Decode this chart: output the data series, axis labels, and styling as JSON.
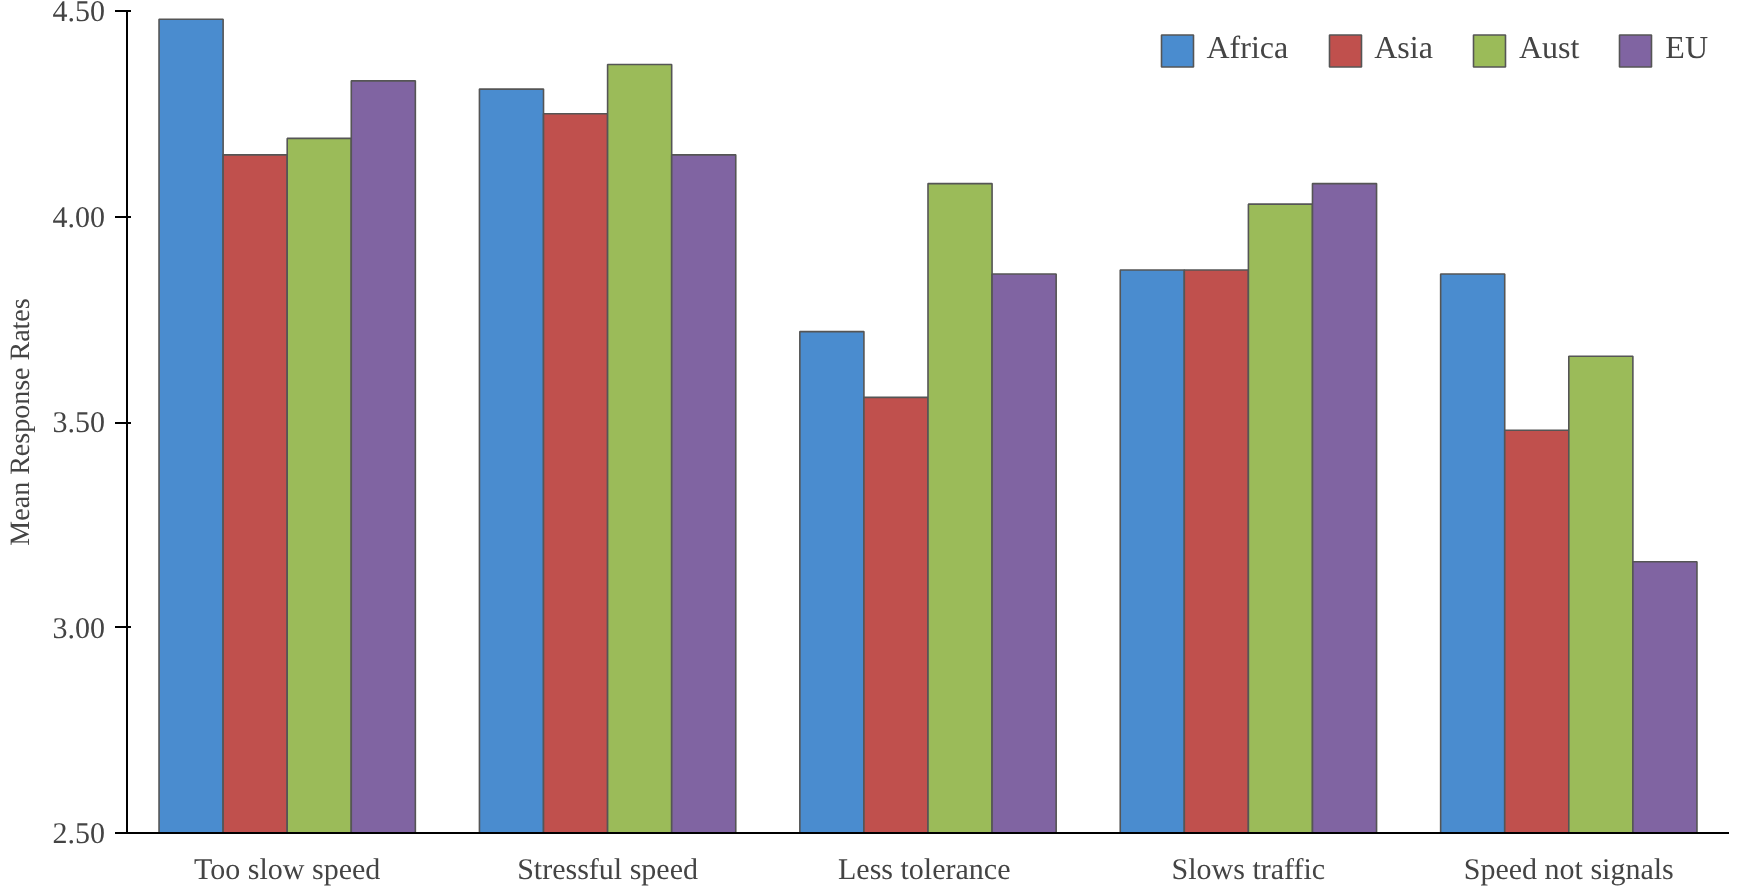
{
  "chart_data": {
    "type": "bar",
    "ylabel": "Mean Response Rates",
    "categories": [
      "Too slow speed",
      "Stressful speed",
      "Less  tolerance",
      "Slows traffic",
      "Speed not signals"
    ],
    "series": [
      {
        "name": "Africa",
        "color": "#4a8ccf",
        "values": [
          4.48,
          4.31,
          3.72,
          3.87,
          3.86
        ]
      },
      {
        "name": "Asia",
        "color": "#c0504d",
        "values": [
          4.15,
          4.25,
          3.56,
          3.87,
          3.48
        ]
      },
      {
        "name": "Aust",
        "color": "#9bbb59",
        "values": [
          4.19,
          4.37,
          4.08,
          4.03,
          3.66
        ]
      },
      {
        "name": "EU",
        "color": "#8064a2",
        "values": [
          4.33,
          4.15,
          3.86,
          4.08,
          3.16
        ]
      }
    ],
    "ylim": [
      2.5,
      4.5
    ],
    "yticks": [
      {
        "value": 2.5,
        "label": "2.50"
      },
      {
        "value": 3.0,
        "label": "3.00"
      },
      {
        "value": 3.5,
        "label": "3.50"
      },
      {
        "value": 4.0,
        "label": "4.00"
      },
      {
        "value": 4.5,
        "label": "4.50"
      }
    ],
    "grid": false,
    "legend": "top right"
  }
}
